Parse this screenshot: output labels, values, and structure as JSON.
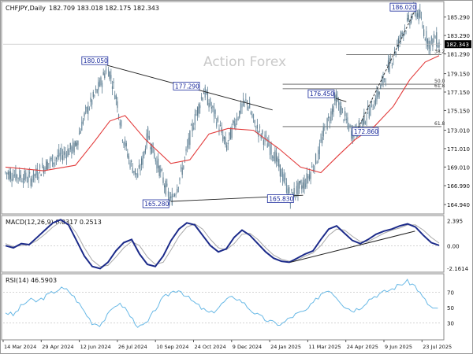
{
  "header": {
    "symbol": "CHFJPY,Daily",
    "ohlc": "182.709 183.018 182.175 182.343"
  },
  "watermark": "Action Forex",
  "colors": {
    "up": "#6f8fa3",
    "down": "#5c7a8c",
    "candle": "#5e7f93",
    "sma": "#e23b3b",
    "macd": "#1c2b8a",
    "signal": "#a9a9a9",
    "rsi": "#69b9e6",
    "trendline": "#222222",
    "level_line": "#555555",
    "label_border": "#1a2a9c",
    "label_text": "#1a2a9c",
    "price_tag_bg": "#000000",
    "price_tag_text": "#ffffff"
  },
  "chart_data": [
    {
      "type": "candlestick",
      "panel": "price",
      "title": "CHFJPY,Daily",
      "ohlc_last": {
        "open": 182.709,
        "high": 183.018,
        "low": 182.175,
        "close": 182.343
      },
      "ylim": [
        164.0,
        186.8
      ],
      "y_ticks": [
        "185.290",
        "183.290",
        "181.290",
        "179.150",
        "177.150",
        "175.150",
        "173.010",
        "171.010",
        "169.010",
        "166.990",
        "164.940"
      ],
      "current_price": "182.343",
      "x_ticks": [
        "14 Mar 2024",
        "29 Apr 2024",
        "12 Jun 2024",
        "26 Jul 2024",
        "10 Sep 2024",
        "24 Oct 2024",
        "9 Dec 2024",
        "24 Jan 2025",
        "11 Mar 2025",
        "24 Apr 2025",
        "9 Jun 2025",
        "23 Jul 2025"
      ],
      "price_path": [
        [
          0,
          168.4
        ],
        [
          12,
          168.0
        ],
        [
          20,
          167.7
        ],
        [
          32,
          169.3
        ],
        [
          45,
          170.4
        ],
        [
          55,
          171.2
        ],
        [
          62,
          174.5
        ],
        [
          70,
          176.7
        ],
        [
          76,
          178.4
        ],
        [
          80,
          180.05
        ],
        [
          84,
          178.3
        ],
        [
          88,
          176.0
        ],
        [
          92,
          172.5
        ],
        [
          98,
          169.5
        ],
        [
          104,
          168.0
        ],
        [
          108,
          169.8
        ],
        [
          112,
          172.6
        ],
        [
          118,
          170.0
        ],
        [
          125,
          167.2
        ],
        [
          130,
          165.28
        ],
        [
          135,
          166.9
        ],
        [
          140,
          169.2
        ],
        [
          146,
          172.8
        ],
        [
          152,
          175.6
        ],
        [
          156,
          177.29
        ],
        [
          162,
          175.5
        ],
        [
          168,
          173.5
        ],
        [
          174,
          171.2
        ],
        [
          180,
          173.8
        ],
        [
          186,
          175.5
        ],
        [
          190,
          176.2
        ],
        [
          196,
          173.6
        ],
        [
          204,
          172.0
        ],
        [
          212,
          170.2
        ],
        [
          218,
          168.0
        ],
        [
          224,
          165.83
        ],
        [
          230,
          166.6
        ],
        [
          236,
          167.4
        ],
        [
          240,
          168.5
        ],
        [
          246,
          170.3
        ],
        [
          250,
          172.6
        ],
        [
          256,
          174.8
        ],
        [
          260,
          176.45
        ],
        [
          266,
          174.6
        ],
        [
          272,
          172.8
        ],
        [
          276,
          172.86
        ],
        [
          282,
          174.2
        ],
        [
          288,
          175.5
        ],
        [
          294,
          177.2
        ],
        [
          300,
          179.5
        ],
        [
          306,
          181.4
        ],
        [
          312,
          183.6
        ],
        [
          318,
          185.0
        ],
        [
          322,
          186.02
        ],
        [
          326,
          185.3
        ],
        [
          330,
          183.4
        ],
        [
          334,
          182.3
        ],
        [
          338,
          183.1
        ],
        [
          341,
          182.343
        ]
      ],
      "sma": [
        [
          0,
          169.0
        ],
        [
          30,
          168.6
        ],
        [
          55,
          169.2
        ],
        [
          70,
          171.8
        ],
        [
          82,
          174.0
        ],
        [
          94,
          174.6
        ],
        [
          110,
          172.0
        ],
        [
          130,
          169.4
        ],
        [
          145,
          169.8
        ],
        [
          160,
          172.6
        ],
        [
          175,
          173.2
        ],
        [
          195,
          173.0
        ],
        [
          215,
          171.0
        ],
        [
          232,
          169.0
        ],
        [
          248,
          168.4
        ],
        [
          262,
          170.3
        ],
        [
          275,
          172.0
        ],
        [
          290,
          173.4
        ],
        [
          305,
          175.6
        ],
        [
          318,
          178.5
        ],
        [
          330,
          180.4
        ],
        [
          341,
          181.1
        ]
      ],
      "annotations": [
        "180.050",
        "177.290",
        "176.450",
        "172.860",
        "165.280",
        "165.830",
        "186.020"
      ],
      "fib_labels": [
        "38.2",
        "50.0",
        "61.8",
        "61.8"
      ],
      "fib_levels": [
        181.2,
        178.0,
        177.5,
        173.4
      ]
    },
    {
      "type": "line",
      "panel": "macd",
      "title": "MACD(12,26,9) 0.0317 0.2513",
      "ylim": [
        -2.4,
        2.6
      ],
      "y_ticks": [
        "2.395",
        "0.00",
        "-2.1614"
      ],
      "series": [
        {
          "name": "MACD",
          "values": [
            0.0,
            -0.2,
            0.2,
            0.1,
            0.8,
            1.5,
            2.2,
            2.5,
            2.0,
            0.5,
            -1.0,
            -2.0,
            -2.2,
            -1.6,
            -0.5,
            0.3,
            0.6,
            -0.8,
            -1.8,
            -2.0,
            -1.0,
            0.5,
            1.6,
            2.2,
            2.0,
            1.0,
            0.0,
            -0.6,
            -0.3,
            0.8,
            1.5,
            1.0,
            0.2,
            -0.6,
            -1.2,
            -1.5,
            -1.6,
            -1.2,
            -0.8,
            -0.5,
            0.6,
            1.6,
            1.9,
            1.2,
            0.5,
            0.2,
            0.6,
            1.1,
            1.4,
            1.6,
            1.9,
            2.1,
            1.8,
            1.0,
            0.3,
            0.0317
          ]
        },
        {
          "name": "Signal",
          "values": [
            0.2,
            -0.1,
            0.0,
            0.1,
            0.5,
            1.1,
            1.8,
            2.3,
            2.2,
            1.2,
            -0.2,
            -1.4,
            -2.0,
            -1.9,
            -1.1,
            -0.2,
            0.4,
            0.0,
            -1.1,
            -1.8,
            -1.6,
            -0.4,
            0.9,
            1.8,
            2.1,
            1.6,
            0.6,
            -0.2,
            -0.4,
            0.2,
            1.1,
            1.2,
            0.6,
            -0.2,
            -0.9,
            -1.3,
            -1.5,
            -1.4,
            -1.0,
            -0.7,
            0.0,
            1.0,
            1.6,
            1.5,
            0.9,
            0.4,
            0.4,
            0.8,
            1.2,
            1.5,
            1.7,
            2.0,
            2.0,
            1.5,
            0.8,
            0.2513
          ]
        }
      ]
    },
    {
      "type": "line",
      "panel": "rsi",
      "title": "RSI(14) 46.5903",
      "ylim": [
        10,
        90
      ],
      "y_ticks": [
        "70",
        "50",
        "30"
      ],
      "levels": [
        70,
        30
      ],
      "series": [
        {
          "name": "RSI",
          "values": [
            44,
            40,
            52,
            60,
            58,
            64,
            70,
            75,
            72,
            60,
            45,
            30,
            28,
            40,
            55,
            52,
            36,
            24,
            30,
            48,
            62,
            70,
            74,
            64,
            56,
            48,
            42,
            50,
            60,
            64,
            58,
            48,
            40,
            34,
            30,
            28,
            36,
            42,
            45,
            55,
            68,
            74,
            64,
            52,
            46,
            50,
            60,
            66,
            70,
            74,
            80,
            84,
            78,
            62,
            50,
            46.59
          ]
        }
      ]
    }
  ]
}
